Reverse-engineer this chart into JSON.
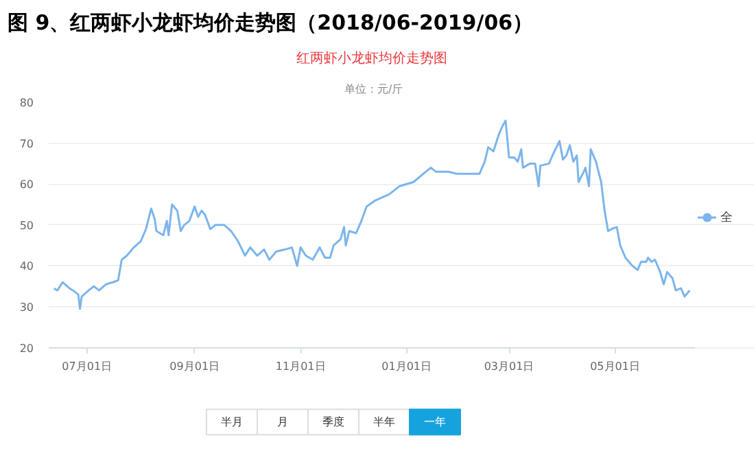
{
  "chart_data": {
    "type": "line",
    "title": "图 9、红两虾小龙虾均价走势图（2018/06-2019/06）",
    "subtitle": "红两虾小龙虾均价走势图",
    "annotations": [
      "单位：元/斤",
      "半月",
      "月",
      "季度",
      "半年",
      "一年"
    ],
    "x": [
      "2018-06-12",
      "2018-06-14",
      "2018-06-17",
      "2018-06-21",
      "2018-06-23",
      "2018-06-26",
      "2018-06-27",
      "2018-06-28",
      "2018-07-02",
      "2018-07-05",
      "2018-07-08",
      "2018-07-12",
      "2018-07-16",
      "2018-07-19",
      "2018-07-21",
      "2018-07-24",
      "2018-07-28",
      "2018-08-01",
      "2018-08-04",
      "2018-08-07",
      "2018-08-09",
      "2018-08-10",
      "2018-08-14",
      "2018-08-16",
      "2018-08-17",
      "2018-08-19",
      "2018-08-22",
      "2018-08-24",
      "2018-08-26",
      "2018-08-29",
      "2018-09-01",
      "2018-09-03",
      "2018-09-05",
      "2018-09-07",
      "2018-09-10",
      "2018-09-13",
      "2018-09-15",
      "2018-09-18",
      "2018-09-22",
      "2018-09-26",
      "2018-09-30",
      "2018-10-03",
      "2018-10-07",
      "2018-10-11",
      "2018-10-14",
      "2018-10-18",
      "2018-10-23",
      "2018-10-27",
      "2018-10-30",
      "2018-11-01",
      "2018-11-04",
      "2018-11-08",
      "2018-11-12",
      "2018-11-15",
      "2018-11-18",
      "2018-11-20",
      "2018-11-24",
      "2018-11-26",
      "2018-11-27",
      "2018-11-29",
      "2018-12-03",
      "2018-12-06",
      "2018-12-09",
      "2018-12-14",
      "2018-12-22",
      "2018-12-28",
      "2019-01-05",
      "2019-01-12",
      "2019-01-15",
      "2019-01-18",
      "2019-01-25",
      "2019-01-30",
      "2019-02-12",
      "2019-02-15",
      "2019-02-17",
      "2019-02-20",
      "2019-02-23",
      "2019-02-25",
      "2019-02-27",
      "2019-03-01",
      "2019-03-04",
      "2019-03-06",
      "2019-03-08",
      "2019-03-09",
      "2019-03-13",
      "2019-03-16",
      "2019-03-18",
      "2019-03-19",
      "2019-03-24",
      "2019-03-26",
      "2019-03-30",
      "2019-04-01",
      "2019-04-03",
      "2019-04-05",
      "2019-04-07",
      "2019-04-09",
      "2019-04-10",
      "2019-04-13",
      "2019-04-14",
      "2019-04-16",
      "2019-04-17",
      "2019-04-20",
      "2019-04-23",
      "2019-04-25",
      "2019-04-27",
      "2019-04-29",
      "2019-05-02",
      "2019-05-04",
      "2019-05-07",
      "2019-05-11",
      "2019-05-14",
      "2019-05-16",
      "2019-05-19",
      "2019-05-20",
      "2019-05-22",
      "2019-05-24",
      "2019-05-27",
      "2019-05-29",
      "2019-05-31",
      "2019-06-03",
      "2019-06-05",
      "2019-06-08",
      "2019-06-10",
      "2019-06-13"
    ],
    "series": [
      {
        "name": "全",
        "color": "#7cb5ec",
        "values": [
          34.5,
          34,
          36,
          34.5,
          34,
          33,
          29.5,
          32.5,
          34,
          35,
          34,
          35.5,
          36,
          36.5,
          41.5,
          42.5,
          44.5,
          46,
          49,
          54,
          51.5,
          48.5,
          47.5,
          51,
          47.5,
          55,
          53.5,
          48.5,
          50,
          51,
          54.5,
          52,
          53.5,
          52.5,
          49,
          50,
          50,
          50,
          48.5,
          46,
          42.5,
          44.5,
          42.5,
          44,
          41.5,
          43.5,
          44,
          44.5,
          40,
          44.5,
          42.5,
          41.5,
          44.5,
          42,
          42,
          45,
          46.5,
          49.5,
          45,
          48.5,
          48,
          51,
          54.5,
          56,
          57.5,
          59.5,
          60.5,
          63,
          64,
          63,
          63,
          62.5,
          62.5,
          65.5,
          69,
          68,
          72,
          74,
          75.5,
          66.5,
          66.5,
          65.5,
          68.5,
          64,
          65,
          65,
          59.5,
          64.5,
          65,
          67,
          70.5,
          66,
          67,
          69.5,
          65.5,
          67,
          60.5,
          63,
          64,
          59.5,
          68.5,
          65.5,
          60.5,
          53.5,
          48.5,
          49,
          49.5,
          45,
          42,
          40,
          39,
          41,
          41,
          42,
          41,
          41.5,
          38.5,
          35.5,
          38.5,
          37,
          34,
          34.5,
          32.5,
          34
        ]
      }
    ],
    "xlim": [
      "2018-06-09",
      "2019-06-16"
    ],
    "xticks": [
      {
        "value": "2018-07-01",
        "label": "07月01日"
      },
      {
        "value": "2018-09-01",
        "label": "09月01日"
      },
      {
        "value": "2018-11-01",
        "label": "11月01日"
      },
      {
        "value": "2019-01-01",
        "label": "01月01日"
      },
      {
        "value": "2019-03-01",
        "label": "03月01日"
      },
      {
        "value": "2019-05-01",
        "label": "05月01日"
      }
    ],
    "ylim": [
      20,
      80
    ],
    "yticks": [
      20,
      30,
      40,
      50,
      60,
      70,
      80
    ],
    "grid": "y",
    "legend": "right",
    "line_style": "solid"
  }
}
